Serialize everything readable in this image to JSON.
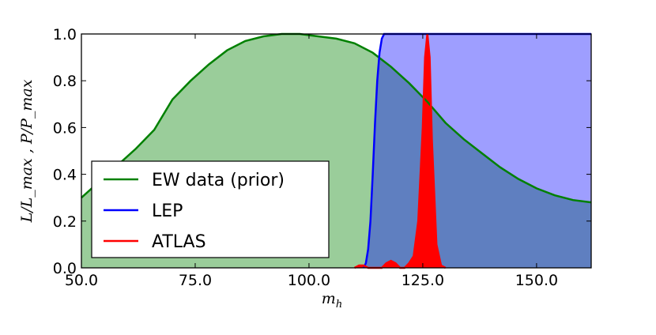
{
  "chart_data": {
    "type": "area",
    "xlabel": "m",
    "xlabel_sub": "h",
    "ylabel": "L/L_max , P/P_max",
    "xlim": [
      50,
      162
    ],
    "ylim": [
      0,
      1.0
    ],
    "xticks": [
      50,
      75,
      100,
      125,
      150
    ],
    "xtick_labels": [
      "50.0",
      "75.0",
      "100.0",
      "125.0",
      "150.0"
    ],
    "yticks": [
      0.0,
      0.2,
      0.4,
      0.6,
      0.8,
      1.0
    ],
    "ytick_labels": [
      "0.0",
      "0.2",
      "0.4",
      "0.6",
      "0.8",
      "1.0"
    ],
    "legend_position": "lower-left",
    "series": [
      {
        "name": "EW data (prior)",
        "color": "#008000",
        "fill": "#9acd9a",
        "x": [
          50,
          54,
          58,
          62,
          66,
          70,
          74,
          78,
          82,
          86,
          90,
          94,
          98,
          102,
          106,
          110,
          114,
          118,
          122,
          126,
          130,
          134,
          138,
          142,
          146,
          150,
          154,
          158,
          162
        ],
        "values": [
          0.3,
          0.37,
          0.44,
          0.51,
          0.59,
          0.72,
          0.8,
          0.87,
          0.93,
          0.97,
          0.99,
          1.0,
          1.0,
          0.99,
          0.98,
          0.96,
          0.92,
          0.86,
          0.79,
          0.71,
          0.62,
          0.55,
          0.49,
          0.43,
          0.38,
          0.34,
          0.31,
          0.29,
          0.28
        ]
      },
      {
        "name": "LEP",
        "color": "#0000ff",
        "fill": "rgba(0,0,255,0.38)",
        "x": [
          112,
          112.5,
          113,
          113.5,
          114,
          114.5,
          115,
          115.5,
          116,
          116.5,
          117,
          162
        ],
        "values": [
          0.0,
          0.02,
          0.08,
          0.2,
          0.4,
          0.62,
          0.8,
          0.92,
          0.98,
          1.0,
          1.0,
          1.0
        ]
      },
      {
        "name": "ATLAS",
        "color": "#ff0000",
        "fill": "#ff0000",
        "x": [
          110,
          111,
          112,
          113,
          114,
          115,
          116,
          117,
          118,
          119,
          120,
          121,
          122,
          123,
          124,
          125,
          125.5,
          126,
          126.5,
          127,
          128,
          129,
          130
        ],
        "values": [
          0.0,
          0.01,
          0.01,
          0.0,
          0.0,
          0.0,
          0.0,
          0.02,
          0.03,
          0.02,
          0.0,
          0.0,
          0.02,
          0.05,
          0.2,
          0.6,
          0.9,
          1.0,
          0.9,
          0.55,
          0.1,
          0.01,
          0.0
        ]
      }
    ]
  }
}
